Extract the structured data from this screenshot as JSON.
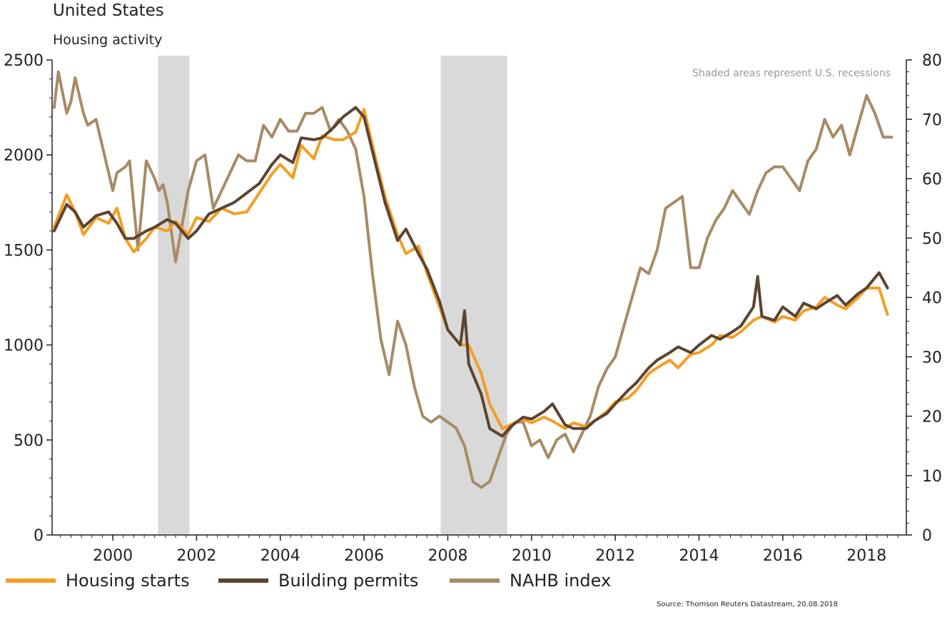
{
  "chart_data": {
    "type": "line",
    "title": "United States",
    "subtitle": "Housing activity",
    "note": "Shaded areas represent U.S. recessions",
    "source": "Source: Thomson Reuters Datastream, 20.08.2018",
    "x_ticks": [
      "2000",
      "2002",
      "2004",
      "2006",
      "2008",
      "2010",
      "2012",
      "2014",
      "2016",
      "2018"
    ],
    "xlim": [
      1998.55,
      2018.95
    ],
    "y_left": {
      "ticks": [
        "0",
        "500",
        "1000",
        "1500",
        "2000",
        "2500"
      ],
      "lim": [
        0,
        2500
      ]
    },
    "y_right": {
      "ticks": [
        "0",
        "10",
        "20",
        "30",
        "40",
        "50",
        "60",
        "70",
        "80"
      ],
      "lim": [
        0,
        80
      ]
    },
    "recessions": [
      [
        2001.08,
        2001.83
      ],
      [
        2007.83,
        2009.42
      ]
    ],
    "series": [
      {
        "name": "Housing starts",
        "axis": "left",
        "color": "#f59d22",
        "x": [
          1998.6,
          1998.9,
          1999.1,
          1999.3,
          1999.6,
          1999.9,
          2000.1,
          2000.3,
          2000.5,
          2000.8,
          2001.0,
          2001.3,
          2001.5,
          2001.8,
          2002.0,
          2002.3,
          2002.6,
          2002.9,
          2003.2,
          2003.5,
          2003.8,
          2004.0,
          2004.3,
          2004.5,
          2004.8,
          2005.0,
          2005.3,
          2005.5,
          2005.8,
          2006.0,
          2006.3,
          2006.5,
          2006.8,
          2007.0,
          2007.3,
          2007.5,
          2007.8,
          2008.0,
          2008.3,
          2008.5,
          2008.8,
          2009.0,
          2009.3,
          2009.5,
          2009.8,
          2010.0,
          2010.3,
          2010.5,
          2010.8,
          2011.0,
          2011.3,
          2011.5,
          2011.8,
          2012.0,
          2012.3,
          2012.5,
          2012.8,
          2013.0,
          2013.3,
          2013.5,
          2013.8,
          2014.0,
          2014.3,
          2014.5,
          2014.8,
          2015.0,
          2015.3,
          2015.5,
          2015.8,
          2016.0,
          2016.3,
          2016.5,
          2016.8,
          2017.0,
          2017.3,
          2017.5,
          2017.8,
          2018.0,
          2018.3,
          2018.5
        ],
        "values": [
          1620,
          1790,
          1700,
          1580,
          1670,
          1640,
          1720,
          1560,
          1490,
          1560,
          1620,
          1600,
          1650,
          1580,
          1670,
          1650,
          1720,
          1690,
          1700,
          1800,
          1900,
          1950,
          1880,
          2050,
          1980,
          2100,
          2080,
          2080,
          2120,
          2240,
          1960,
          1780,
          1580,
          1480,
          1520,
          1380,
          1200,
          1080,
          1000,
          1000,
          850,
          690,
          560,
          580,
          610,
          590,
          620,
          600,
          560,
          590,
          570,
          600,
          650,
          700,
          720,
          760,
          850,
          880,
          920,
          880,
          950,
          960,
          1000,
          1050,
          1040,
          1070,
          1130,
          1150,
          1120,
          1150,
          1130,
          1180,
          1200,
          1250,
          1210,
          1190,
          1250,
          1300,
          1300,
          1160
        ]
      },
      {
        "name": "Building permits",
        "axis": "left",
        "color": "#5b4430",
        "x": [
          1998.6,
          1998.9,
          1999.1,
          1999.3,
          1999.6,
          1999.9,
          2000.1,
          2000.3,
          2000.5,
          2000.8,
          2001.0,
          2001.3,
          2001.5,
          2001.8,
          2002.0,
          2002.3,
          2002.6,
          2002.9,
          2003.2,
          2003.5,
          2003.8,
          2004.0,
          2004.3,
          2004.5,
          2004.8,
          2005.0,
          2005.3,
          2005.5,
          2005.8,
          2006.0,
          2006.3,
          2006.5,
          2006.8,
          2007.0,
          2007.3,
          2007.5,
          2007.8,
          2008.0,
          2008.3,
          2008.4,
          2008.5,
          2008.8,
          2009.0,
          2009.3,
          2009.5,
          2009.8,
          2010.0,
          2010.3,
          2010.5,
          2010.8,
          2011.0,
          2011.3,
          2011.5,
          2011.8,
          2012.0,
          2012.3,
          2012.5,
          2012.8,
          2013.0,
          2013.3,
          2013.5,
          2013.8,
          2014.0,
          2014.3,
          2014.5,
          2014.8,
          2015.0,
          2015.3,
          2015.4,
          2015.5,
          2015.8,
          2016.0,
          2016.3,
          2016.5,
          2016.8,
          2017.0,
          2017.3,
          2017.5,
          2017.8,
          2018.0,
          2018.3,
          2018.5
        ],
        "values": [
          1600,
          1740,
          1700,
          1620,
          1680,
          1700,
          1640,
          1560,
          1560,
          1600,
          1620,
          1660,
          1640,
          1560,
          1600,
          1690,
          1720,
          1750,
          1800,
          1850,
          1950,
          2000,
          1960,
          2090,
          2080,
          2090,
          2150,
          2200,
          2250,
          2200,
          1930,
          1750,
          1550,
          1610,
          1480,
          1400,
          1230,
          1080,
          1000,
          1180,
          900,
          740,
          560,
          520,
          570,
          620,
          610,
          650,
          690,
          580,
          560,
          560,
          600,
          640,
          690,
          760,
          800,
          880,
          920,
          960,
          990,
          960,
          1000,
          1050,
          1030,
          1070,
          1100,
          1200,
          1360,
          1150,
          1130,
          1200,
          1150,
          1220,
          1190,
          1220,
          1260,
          1210,
          1270,
          1300,
          1380,
          1300
        ]
      },
      {
        "name": "NAHB index",
        "axis": "right",
        "color": "#a88b66",
        "x": [
          1998.6,
          1998.7,
          1998.9,
          1999.0,
          1999.1,
          1999.3,
          1999.4,
          1999.6,
          1999.8,
          2000.0,
          2000.1,
          2000.3,
          2000.4,
          2000.6,
          2000.8,
          2001.0,
          2001.1,
          2001.2,
          2001.3,
          2001.5,
          2001.7,
          2001.8,
          2002.0,
          2002.2,
          2002.4,
          2002.6,
          2002.8,
          2003.0,
          2003.2,
          2003.4,
          2003.6,
          2003.8,
          2004.0,
          2004.2,
          2004.4,
          2004.6,
          2004.8,
          2005.0,
          2005.2,
          2005.4,
          2005.6,
          2005.8,
          2006.0,
          2006.2,
          2006.4,
          2006.6,
          2006.8,
          2007.0,
          2007.2,
          2007.4,
          2007.6,
          2007.8,
          2008.0,
          2008.2,
          2008.4,
          2008.6,
          2008.8,
          2009.0,
          2009.2,
          2009.4,
          2009.6,
          2009.8,
          2010.0,
          2010.2,
          2010.4,
          2010.6,
          2010.8,
          2011.0,
          2011.2,
          2011.4,
          2011.6,
          2011.8,
          2012.0,
          2012.2,
          2012.4,
          2012.6,
          2012.8,
          2013.0,
          2013.2,
          2013.4,
          2013.6,
          2013.8,
          2014.0,
          2014.2,
          2014.4,
          2014.6,
          2014.8,
          2015.0,
          2015.2,
          2015.4,
          2015.6,
          2015.8,
          2016.0,
          2016.2,
          2016.4,
          2016.6,
          2016.8,
          2017.0,
          2017.2,
          2017.4,
          2017.6,
          2017.8,
          2018.0,
          2018.2,
          2018.4,
          2018.6
        ],
        "values": [
          72,
          78,
          71,
          73,
          77,
          71,
          69,
          70,
          64,
          58,
          61,
          62,
          63,
          48,
          63,
          60,
          58,
          59,
          56,
          46,
          54,
          58,
          63,
          64,
          55,
          58,
          61,
          64,
          63,
          63,
          69,
          67,
          70,
          68,
          68,
          71,
          71,
          72,
          68,
          70,
          68,
          65,
          57,
          44,
          33,
          27,
          36,
          32,
          25,
          20,
          19,
          20,
          19,
          18,
          15,
          9,
          8,
          9,
          13,
          17,
          19,
          19,
          15,
          16,
          13,
          16,
          17,
          14,
          17,
          20,
          25,
          28,
          30,
          35,
          40,
          45,
          44,
          48,
          55,
          56,
          57,
          45,
          45,
          50,
          53,
          55,
          58,
          56,
          54,
          58,
          61,
          62,
          62,
          60,
          58,
          63,
          65,
          70,
          67,
          69,
          64,
          69,
          74,
          71,
          67,
          67
        ]
      }
    ]
  }
}
